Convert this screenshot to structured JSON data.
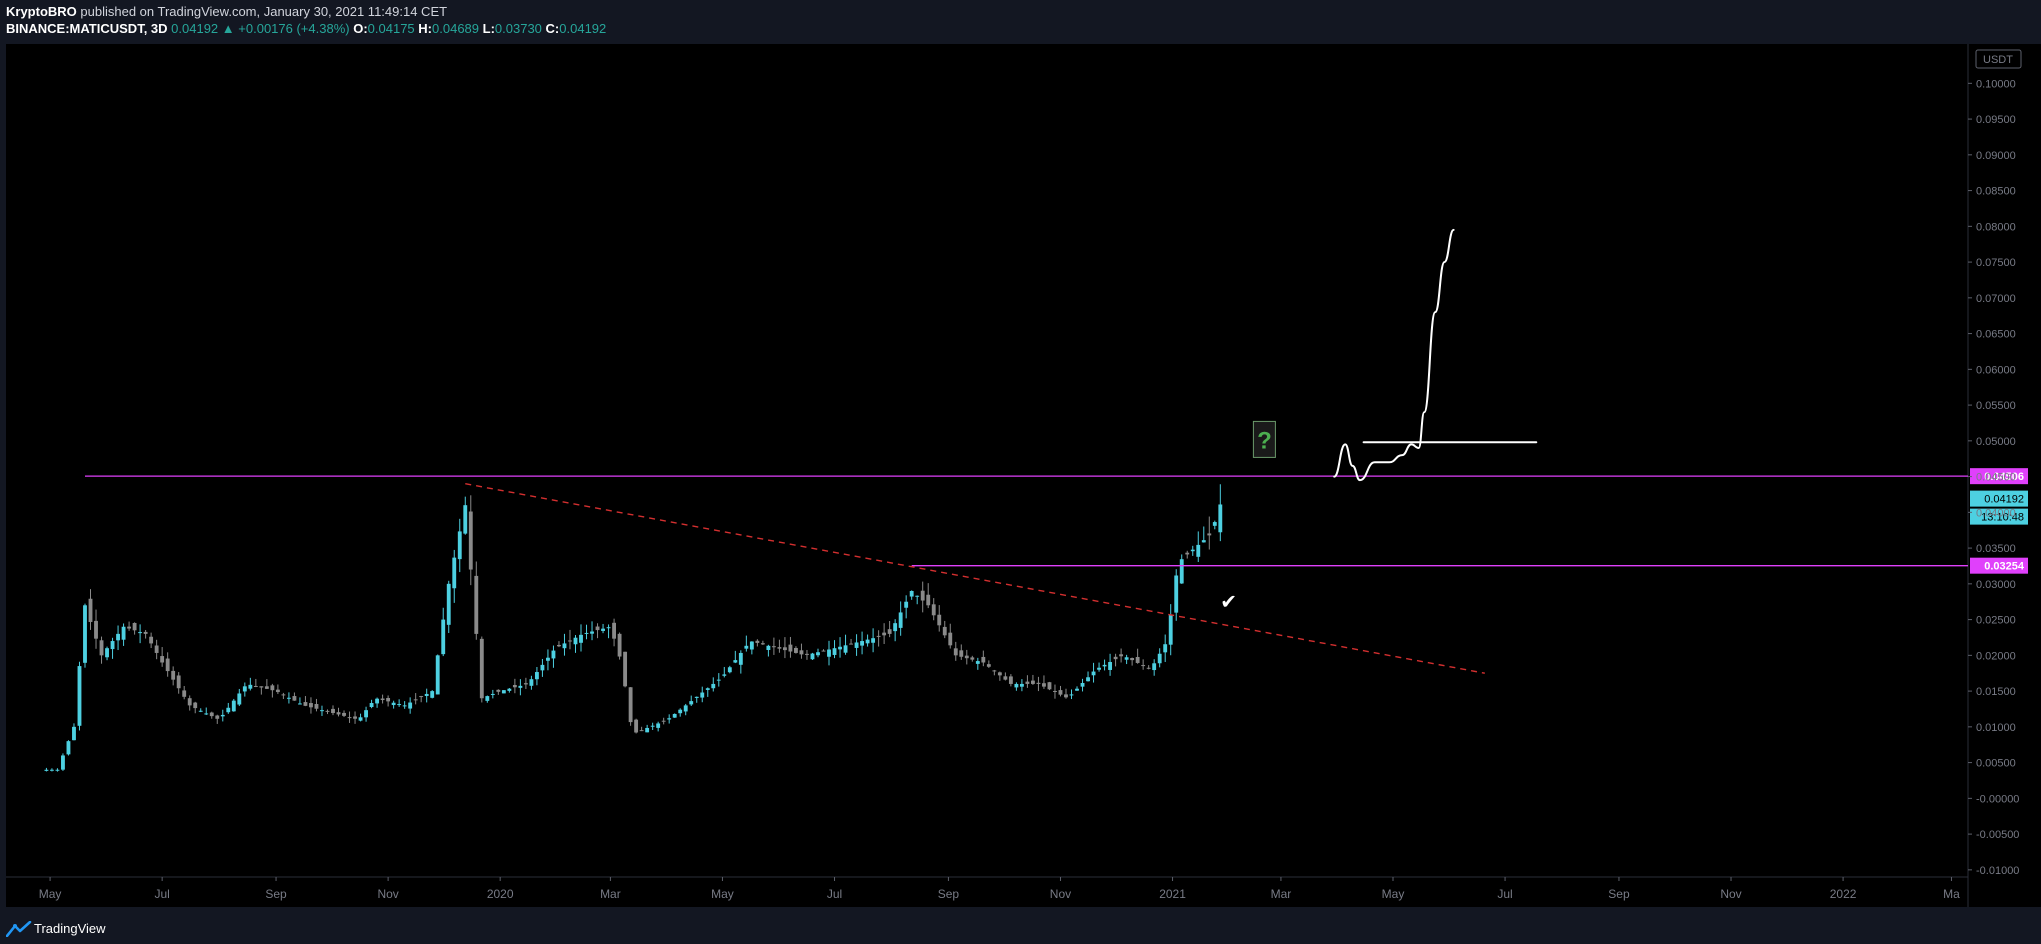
{
  "header": {
    "author": "KryptoBRO",
    "published": "published on TradingView.com, January 30, 2021 11:49:14 CET",
    "symbol": "BINANCE:MATICUSDT, 3D",
    "last": "0.04192",
    "change": "▲ +0.00176 (+4.38%)",
    "o_label": "O:",
    "o_value": "0.04175",
    "h_label": "H:",
    "h_value": "0.04689",
    "l_label": "L:",
    "l_value": "0.03730",
    "c_label": "C:",
    "c_value": "0.04192"
  },
  "footer": {
    "brand": "TradingView"
  },
  "colors": {
    "background": "#000000",
    "up": "#4dd0e1",
    "down": "#8a8a8a",
    "level": "#e040fb",
    "trend": "#d32f2f",
    "sketch": "#ffffff"
  },
  "chart_data": {
    "type": "candlestick",
    "currency_badge": "USDT",
    "y_ticks": [
      "0.10000",
      "0.09500",
      "0.09000",
      "0.08500",
      "0.08000",
      "0.07500",
      "0.07000",
      "0.06500",
      "0.06000",
      "0.05500",
      "0.05000",
      "0.04500",
      "0.04000",
      "0.03500",
      "0.03000",
      "0.02500",
      "0.02000",
      "0.01500",
      "0.01000",
      "0.00500",
      "-0.00000",
      "-0.00500",
      "-0.01000"
    ],
    "y_tick_values": [
      0.1,
      0.095,
      0.09,
      0.085,
      0.08,
      0.075,
      0.07,
      0.065,
      0.06,
      0.055,
      0.05,
      0.045,
      0.04,
      0.035,
      0.03,
      0.025,
      0.02,
      0.015,
      0.01,
      0.005,
      0,
      -0.005,
      -0.01
    ],
    "ylim": [
      -0.011,
      0.1055
    ],
    "x_ticks": [
      {
        "label": "May",
        "date": "2019-05-01"
      },
      {
        "label": "Jul",
        "date": "2019-07-01"
      },
      {
        "label": "Sep",
        "date": "2019-09-01"
      },
      {
        "label": "Nov",
        "date": "2019-11-01"
      },
      {
        "label": "2020",
        "date": "2020-01-01"
      },
      {
        "label": "Mar",
        "date": "2020-03-01"
      },
      {
        "label": "May",
        "date": "2020-05-01"
      },
      {
        "label": "Jul",
        "date": "2020-07-01"
      },
      {
        "label": "Sep",
        "date": "2020-09-01"
      },
      {
        "label": "Nov",
        "date": "2020-11-01"
      },
      {
        "label": "2021",
        "date": "2021-01-01"
      },
      {
        "label": "Mar",
        "date": "2021-03-01"
      },
      {
        "label": "May",
        "date": "2021-05-01"
      },
      {
        "label": "Jul",
        "date": "2021-07-01"
      },
      {
        "label": "Sep",
        "date": "2021-09-01"
      },
      {
        "label": "Nov",
        "date": "2021-11-01"
      },
      {
        "label": "2022",
        "date": "2022-01-01"
      },
      {
        "label": "Ma",
        "date": "2022-03-01"
      }
    ],
    "xlim": [
      "2019-04-07",
      "2022-03-10"
    ],
    "series": [
      {
        "name": "MATICUSDT",
        "close_points": [
          [
            "2019-04-26",
            0.004
          ],
          [
            "2019-05-05",
            0.004
          ],
          [
            "2019-05-14",
            0.01
          ],
          [
            "2019-05-20",
            0.027
          ],
          [
            "2019-05-29",
            0.02
          ],
          [
            "2019-06-10",
            0.024
          ],
          [
            "2019-06-22",
            0.023
          ],
          [
            "2019-07-01",
            0.019
          ],
          [
            "2019-07-16",
            0.013
          ],
          [
            "2019-08-01",
            0.011
          ],
          [
            "2019-08-16",
            0.016
          ],
          [
            "2019-09-01",
            0.015
          ],
          [
            "2019-09-16",
            0.013
          ],
          [
            "2019-10-01",
            0.012
          ],
          [
            "2019-10-16",
            0.011
          ],
          [
            "2019-10-25",
            0.014
          ],
          [
            "2019-11-10",
            0.013
          ],
          [
            "2019-11-25",
            0.015
          ],
          [
            "2019-12-04",
            0.03
          ],
          [
            "2019-12-13",
            0.041
          ],
          [
            "2019-12-22",
            0.014
          ],
          [
            "2020-01-01",
            0.015
          ],
          [
            "2020-01-16",
            0.016
          ],
          [
            "2020-01-31",
            0.021
          ],
          [
            "2020-02-15",
            0.023
          ],
          [
            "2020-03-01",
            0.024
          ],
          [
            "2020-03-07",
            0.019
          ],
          [
            "2020-03-13",
            0.009
          ],
          [
            "2020-04-01",
            0.011
          ],
          [
            "2020-04-16",
            0.014
          ],
          [
            "2020-05-01",
            0.017
          ],
          [
            "2020-05-16",
            0.022
          ],
          [
            "2020-05-31",
            0.021
          ],
          [
            "2020-06-15",
            0.02
          ],
          [
            "2020-07-01",
            0.021
          ],
          [
            "2020-07-16",
            0.022
          ],
          [
            "2020-07-31",
            0.023
          ],
          [
            "2020-08-12",
            0.029
          ],
          [
            "2020-08-21",
            0.027
          ],
          [
            "2020-09-05",
            0.02
          ],
          [
            "2020-09-20",
            0.019
          ],
          [
            "2020-10-05",
            0.016
          ],
          [
            "2020-10-20",
            0.016
          ],
          [
            "2020-11-05",
            0.014
          ],
          [
            "2020-11-20",
            0.018
          ],
          [
            "2020-12-05",
            0.02
          ],
          [
            "2020-12-20",
            0.018
          ],
          [
            "2020-12-29",
            0.022
          ],
          [
            "2021-01-04",
            0.033
          ],
          [
            "2021-01-13",
            0.035
          ],
          [
            "2021-01-22",
            0.037
          ],
          [
            "2021-01-28",
            0.04192
          ]
        ]
      }
    ],
    "last_close_label": "0.04192",
    "countdown_label": "13:10:48",
    "levels": [
      {
        "value": 0.04506,
        "label": "0.04506",
        "start": "2019-05-20"
      },
      {
        "value": 0.03254,
        "label": "0.03254",
        "start": "2020-08-12"
      }
    ],
    "trendline": {
      "start": [
        "2019-12-13",
        0.044
      ],
      "end": [
        "2021-06-20",
        0.0175
      ]
    },
    "annotation_question": "?",
    "annotation_check": "✔",
    "projection_points": [
      [
        "2021-03-30",
        0.045
      ],
      [
        "2021-04-05",
        0.0495
      ],
      [
        "2021-04-09",
        0.0465
      ],
      [
        "2021-04-13",
        0.0445
      ],
      [
        "2021-04-21",
        0.047
      ],
      [
        "2021-04-29",
        0.047
      ],
      [
        "2021-05-06",
        0.048
      ],
      [
        "2021-05-11",
        0.0495
      ],
      [
        "2021-05-15",
        0.049
      ],
      [
        "2021-05-18",
        0.054
      ],
      [
        "2021-05-24",
        0.068
      ],
      [
        "2021-05-29",
        0.075
      ],
      [
        "2021-06-03",
        0.0795
      ]
    ],
    "projection_flat": {
      "start": [
        "2021-04-15",
        0.0498
      ],
      "end": [
        "2021-07-18",
        0.0498
      ]
    }
  }
}
